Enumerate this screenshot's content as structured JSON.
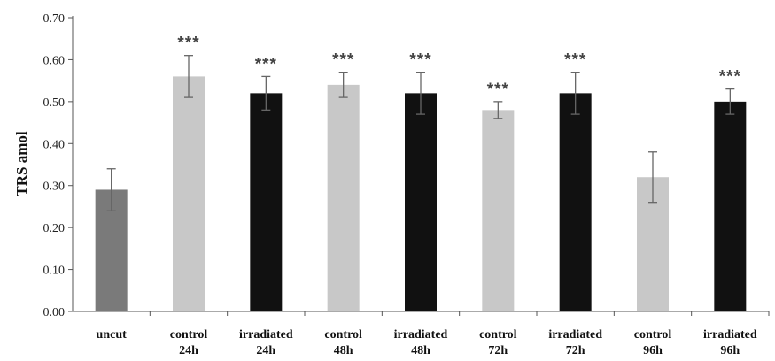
{
  "chart_data": {
    "type": "bar",
    "ylabel": "TRS amol",
    "xlabel": "",
    "ylim": [
      0,
      0.7
    ],
    "ytick_labels": [
      "0.00",
      "0.10",
      "0.20",
      "0.30",
      "0.40",
      "0.50",
      "0.60",
      "0.70"
    ],
    "categories": [
      [
        "uncut"
      ],
      [
        "control",
        "24h"
      ],
      [
        "irradiated",
        "24h"
      ],
      [
        "control",
        "48h"
      ],
      [
        "irradiated",
        "48h"
      ],
      [
        "control",
        "72h"
      ],
      [
        "irradiated",
        "72h"
      ],
      [
        "control",
        "96h"
      ],
      [
        "irradiated",
        "96h"
      ]
    ],
    "values": [
      0.29,
      0.56,
      0.52,
      0.54,
      0.52,
      0.48,
      0.52,
      0.32,
      0.5
    ],
    "errors": [
      0.05,
      0.05,
      0.04,
      0.03,
      0.05,
      0.02,
      0.05,
      0.06,
      0.03
    ],
    "significance": [
      "",
      "***",
      "***",
      "***",
      "***",
      "***",
      "***",
      "",
      "***"
    ],
    "bar_colors": [
      "#7a7a7a",
      "#c8c8c8",
      "#111111",
      "#c8c8c8",
      "#111111",
      "#c8c8c8",
      "#111111",
      "#c8c8c8",
      "#111111"
    ],
    "grid": false,
    "legend": "none"
  }
}
